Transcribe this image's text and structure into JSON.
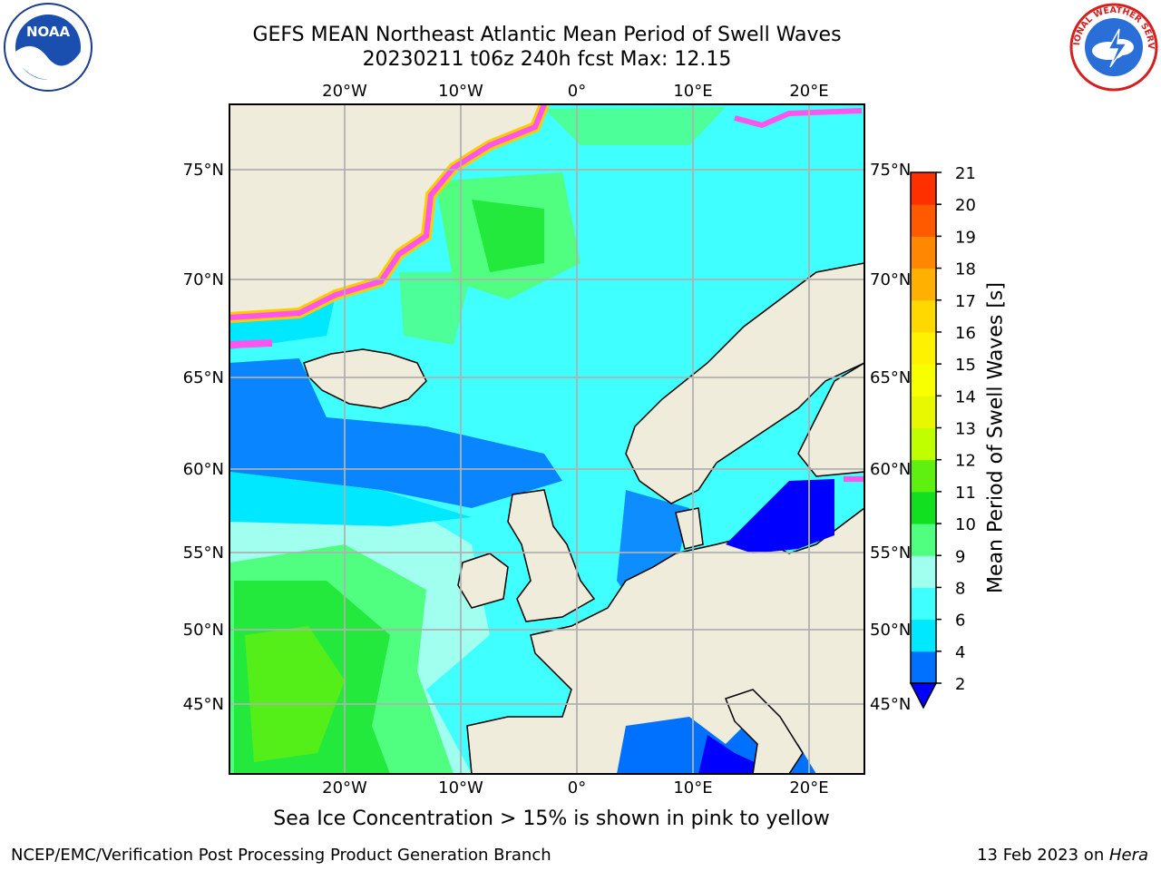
{
  "title": {
    "line1": "GEFS MEAN Northeast Atlantic Mean Period of Swell Waves",
    "line2": "20230211 t06z 240h fcst   Max: 12.15"
  },
  "logos": {
    "left": "NOAA",
    "right": "NATIONAL WEATHER SERVICE"
  },
  "axes": {
    "lon_labels": [
      "20°W",
      "10°W",
      "0°",
      "10°E",
      "20°E"
    ],
    "lat_labels": [
      "75°N",
      "70°N",
      "65°N",
      "60°N",
      "55°N",
      "50°N",
      "45°N"
    ]
  },
  "colorbar": {
    "label": "Mean Period of Swell Waves [s]",
    "ticks": [
      "2",
      "4",
      "6",
      "8",
      "9",
      "10",
      "11",
      "12",
      "13",
      "14",
      "15",
      "16",
      "17",
      "18",
      "19",
      "20",
      "21"
    ],
    "colors": [
      "#0070ff",
      "#00e8ff",
      "#40ffff",
      "#a0ffee",
      "#50ff80",
      "#10e020",
      "#60f010",
      "#c0ff00",
      "#e8f800",
      "#f8ff00",
      "#fff200",
      "#ffd800",
      "#ffb000",
      "#ff8800",
      "#ff5a00",
      "#ff3000",
      "#ff0000"
    ],
    "under_color": "#0000ff"
  },
  "legend_note": "Sea Ice Concentration > 15% is shown in pink to yellow",
  "footer": {
    "left": "NCEP/EMC/Verification Post Processing Product Generation Branch",
    "right_date": "13 Feb 2023 on ",
    "right_host": "Hera"
  },
  "colors": {
    "land": "#efecdc",
    "ice": "#ff55ee",
    "grid": "#b0b0b0"
  }
}
